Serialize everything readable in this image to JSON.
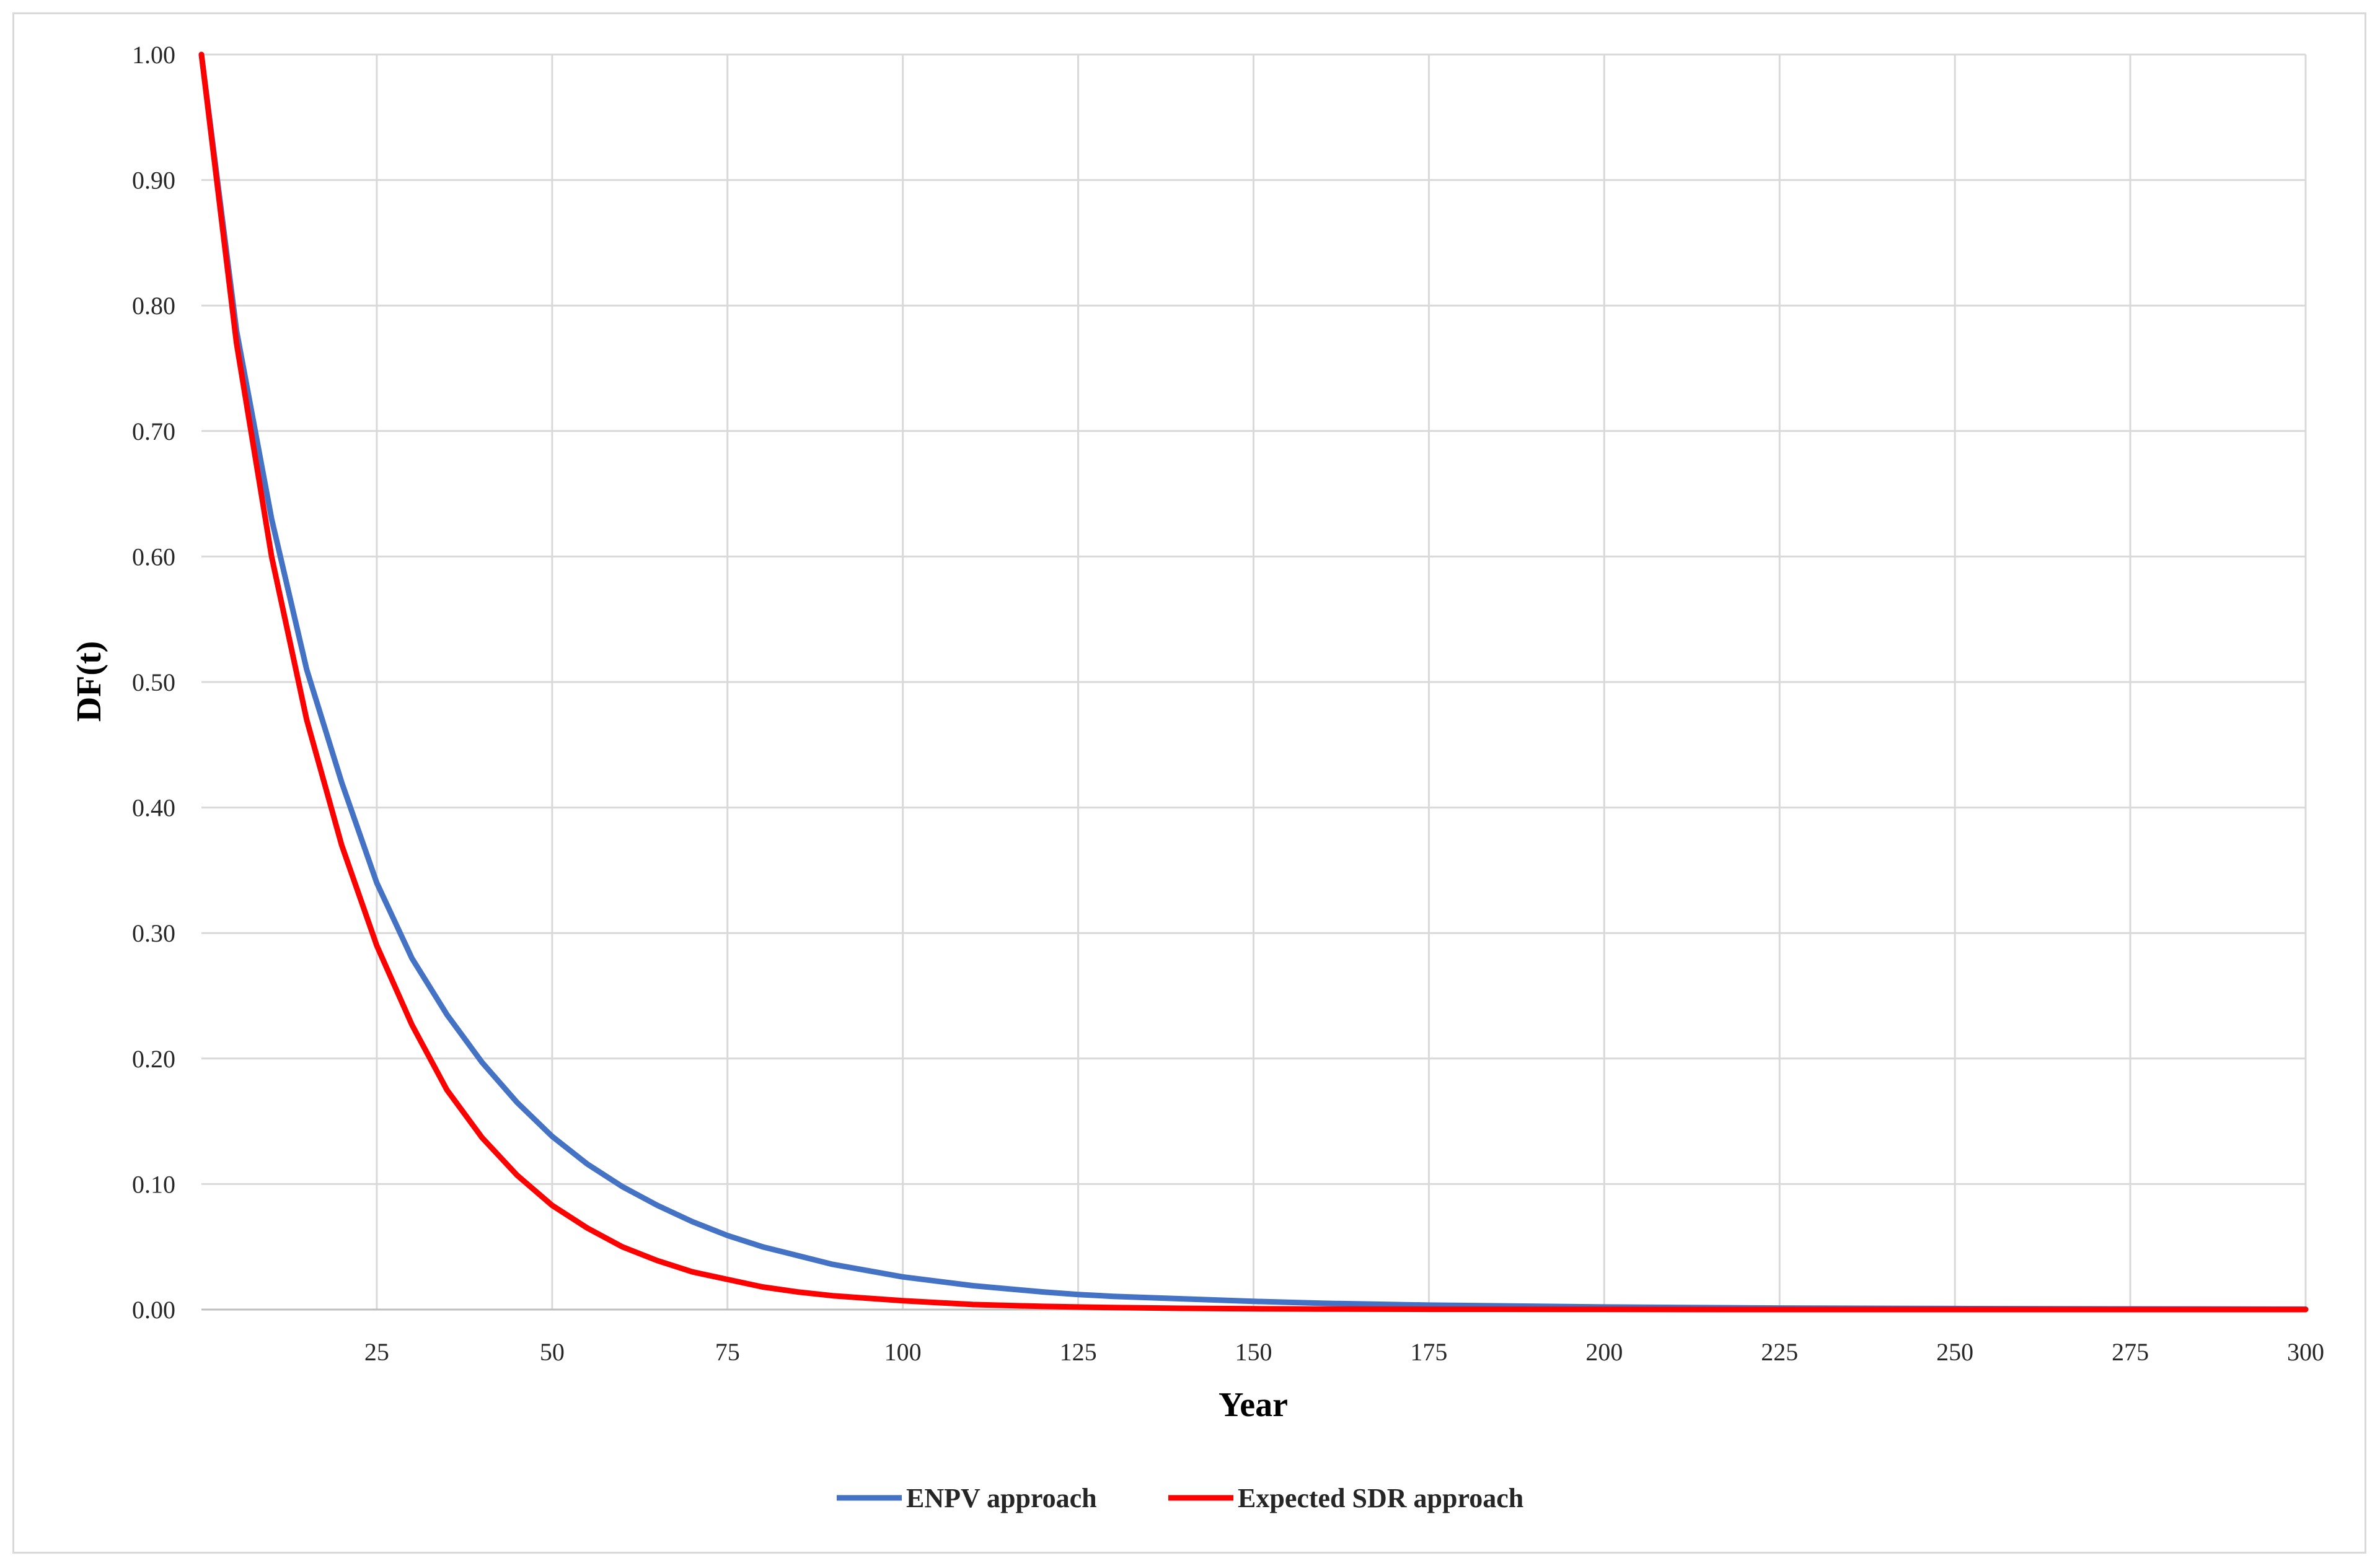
{
  "chart_data": {
    "type": "line",
    "title": "",
    "xlabel": "Year",
    "ylabel": "DF(t)",
    "xlim": [
      0,
      300
    ],
    "ylim": [
      0,
      1
    ],
    "x_ticks": [
      25,
      50,
      75,
      100,
      125,
      150,
      175,
      200,
      225,
      250,
      275,
      300
    ],
    "y_ticks": [
      0,
      0.1,
      0.2,
      0.3,
      0.4,
      0.5,
      0.6,
      0.7,
      0.8,
      0.9,
      1.0
    ],
    "y_tick_labels": [
      "0.00",
      "0.10",
      "0.20",
      "0.30",
      "0.40",
      "0.50",
      "0.60",
      "0.70",
      "0.80",
      "0.90",
      "1.00"
    ],
    "grid": true,
    "legend_position": "bottom",
    "x": [
      0,
      5,
      10,
      15,
      20,
      25,
      30,
      35,
      40,
      45,
      50,
      55,
      60,
      65,
      70,
      75,
      80,
      85,
      90,
      95,
      100,
      110,
      120,
      125,
      130,
      140,
      150,
      160,
      175,
      200,
      225,
      250,
      275,
      300
    ],
    "series": [
      {
        "name": "ENPV approach",
        "color": "#4472C4",
        "values": [
          1.0,
          0.78,
          0.63,
          0.51,
          0.42,
          0.34,
          0.28,
          0.235,
          0.197,
          0.165,
          0.138,
          0.116,
          0.098,
          0.083,
          0.07,
          0.059,
          0.05,
          0.043,
          0.036,
          0.031,
          0.026,
          0.019,
          0.014,
          0.012,
          0.0105,
          0.0085,
          0.0065,
          0.005,
          0.0035,
          0.002,
          0.0012,
          0.0008,
          0.0005,
          0.0003
        ]
      },
      {
        "name": "Expected SDR approach",
        "color": "#FF0000",
        "values": [
          1.0,
          0.77,
          0.6,
          0.47,
          0.37,
          0.29,
          0.227,
          0.175,
          0.137,
          0.107,
          0.083,
          0.065,
          0.05,
          0.039,
          0.03,
          0.024,
          0.018,
          0.014,
          0.011,
          0.009,
          0.007,
          0.004,
          0.0025,
          0.002,
          0.0016,
          0.001,
          0.0006,
          0.0004,
          0.0002,
          0.0001,
          0.0,
          0.0,
          0.0,
          0.0
        ]
      }
    ]
  }
}
